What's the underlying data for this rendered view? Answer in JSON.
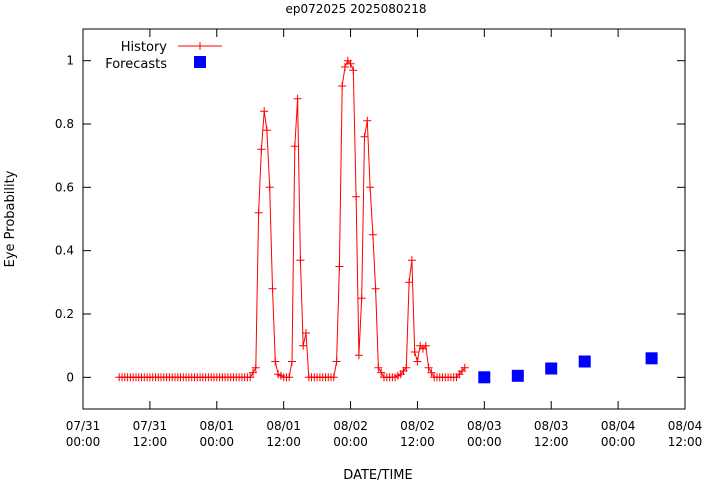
{
  "chart_data": {
    "type": "line",
    "title": "ep072025 2025080218",
    "xlabel": "DATE/TIME",
    "ylabel": "Eye Probability",
    "xlim": [
      "2025-07-31 00:00",
      "2025-08-04 12:00"
    ],
    "ylim": [
      -0.1,
      1.1
    ],
    "yticks": [
      0,
      0.2,
      0.4,
      0.6,
      0.8,
      1
    ],
    "xticks": [
      {
        "date": "07/31",
        "time": "00:00"
      },
      {
        "date": "07/31",
        "time": "12:00"
      },
      {
        "date": "08/01",
        "time": "00:00"
      },
      {
        "date": "08/01",
        "time": "12:00"
      },
      {
        "date": "08/02",
        "time": "00:00"
      },
      {
        "date": "08/02",
        "time": "12:00"
      },
      {
        "date": "08/03",
        "time": "00:00"
      },
      {
        "date": "08/03",
        "time": "12:00"
      },
      {
        "date": "08/04",
        "time": "00:00"
      },
      {
        "date": "08/04",
        "time": "12:00"
      }
    ],
    "grid": false,
    "legend_position": "top-left",
    "series": [
      {
        "name": "History",
        "color": "#ff0000",
        "marker": "plus",
        "points": [
          [
            "2025-07-31 06:30",
            0
          ],
          [
            "2025-07-31 09:00",
            0
          ],
          [
            "2025-07-31 12:00",
            0
          ],
          [
            "2025-07-31 15:00",
            0
          ],
          [
            "2025-07-31 18:00",
            0
          ],
          [
            "2025-07-31 21:00",
            0
          ],
          [
            "2025-08-01 00:00",
            0
          ],
          [
            "2025-08-01 03:00",
            0
          ],
          [
            "2025-08-01 06:00",
            0
          ],
          [
            "2025-08-01 07:00",
            0.03
          ],
          [
            "2025-08-01 07:30",
            0.52
          ],
          [
            "2025-08-01 08:00",
            0.72
          ],
          [
            "2025-08-01 08:30",
            0.84
          ],
          [
            "2025-08-01 09:00",
            0.78
          ],
          [
            "2025-08-01 09:30",
            0.6
          ],
          [
            "2025-08-01 10:00",
            0.28
          ],
          [
            "2025-08-01 10:30",
            0.05
          ],
          [
            "2025-08-01 11:00",
            0.01
          ],
          [
            "2025-08-01 12:00",
            0
          ],
          [
            "2025-08-01 13:00",
            0
          ],
          [
            "2025-08-01 13:30",
            0.05
          ],
          [
            "2025-08-01 14:00",
            0.73
          ],
          [
            "2025-08-01 14:30",
            0.88
          ],
          [
            "2025-08-01 15:00",
            0.37
          ],
          [
            "2025-08-01 15:30",
            0.1
          ],
          [
            "2025-08-01 16:00",
            0.14
          ],
          [
            "2025-08-01 16:30",
            0
          ],
          [
            "2025-08-01 18:00",
            0
          ],
          [
            "2025-08-01 20:00",
            0
          ],
          [
            "2025-08-01 21:00",
            0
          ],
          [
            "2025-08-01 21:30",
            0.05
          ],
          [
            "2025-08-01 22:00",
            0.35
          ],
          [
            "2025-08-01 22:30",
            0.92
          ],
          [
            "2025-08-01 23:00",
            0.98
          ],
          [
            "2025-08-01 23:30",
            1.0
          ],
          [
            "2025-08-02 00:00",
            0.99
          ],
          [
            "2025-08-02 00:30",
            0.97
          ],
          [
            "2025-08-02 01:00",
            0.57
          ],
          [
            "2025-08-02 01:30",
            0.07
          ],
          [
            "2025-08-02 02:00",
            0.25
          ],
          [
            "2025-08-02 02:30",
            0.76
          ],
          [
            "2025-08-02 03:00",
            0.81
          ],
          [
            "2025-08-02 03:30",
            0.6
          ],
          [
            "2025-08-02 04:00",
            0.45
          ],
          [
            "2025-08-02 04:30",
            0.28
          ],
          [
            "2025-08-02 05:00",
            0.03
          ],
          [
            "2025-08-02 06:00",
            0
          ],
          [
            "2025-08-02 08:00",
            0
          ],
          [
            "2025-08-02 09:00",
            0.01
          ],
          [
            "2025-08-02 10:00",
            0.03
          ],
          [
            "2025-08-02 10:30",
            0.3
          ],
          [
            "2025-08-02 11:00",
            0.37
          ],
          [
            "2025-08-02 11:30",
            0.08
          ],
          [
            "2025-08-02 12:00",
            0.05
          ],
          [
            "2025-08-02 12:30",
            0.1
          ],
          [
            "2025-08-02 13:00",
            0.09
          ],
          [
            "2025-08-02 13:30",
            0.1
          ],
          [
            "2025-08-02 14:00",
            0.03
          ],
          [
            "2025-08-02 15:00",
            0
          ],
          [
            "2025-08-02 17:00",
            0
          ],
          [
            "2025-08-02 19:00",
            0
          ],
          [
            "2025-08-02 20:00",
            0.02
          ],
          [
            "2025-08-02 20:30",
            0.03
          ]
        ]
      },
      {
        "name": "Forecasts",
        "color": "#0000ff",
        "marker": "square",
        "points": [
          [
            "2025-08-03 00:00",
            0.0
          ],
          [
            "2025-08-03 06:00",
            0.005
          ],
          [
            "2025-08-03 12:00",
            0.028
          ],
          [
            "2025-08-03 18:00",
            0.05
          ],
          [
            "2025-08-04 06:00",
            0.06
          ]
        ]
      }
    ]
  }
}
